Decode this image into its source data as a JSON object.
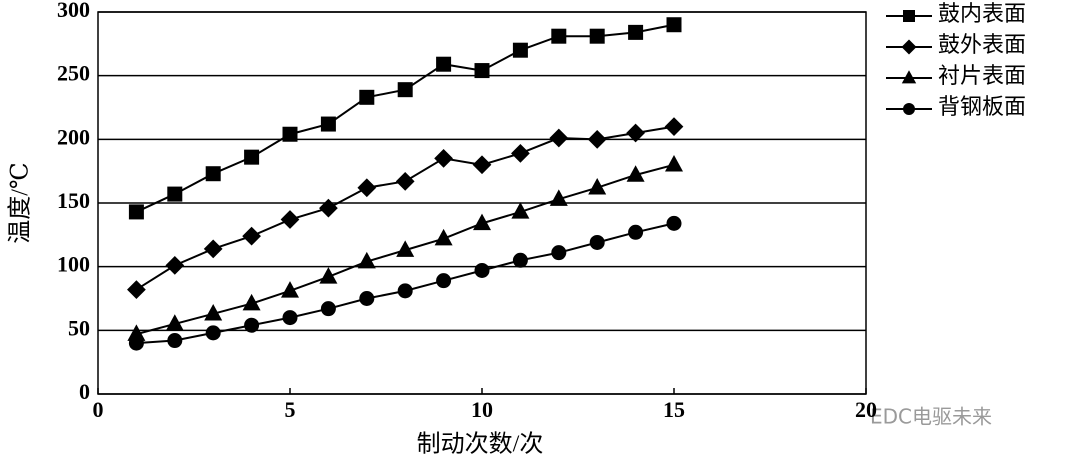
{
  "chart_data": {
    "type": "line",
    "x": [
      1,
      2,
      3,
      4,
      5,
      6,
      7,
      8,
      9,
      10,
      11,
      12,
      13,
      14,
      15
    ],
    "series": [
      {
        "name": "鼓内表面",
        "color": "#000000",
        "marker": "square",
        "values": [
          143,
          157,
          173,
          186,
          204,
          212,
          233,
          239,
          259,
          254,
          270,
          281,
          281,
          284,
          290
        ]
      },
      {
        "name": "鼓外表面",
        "color": "#000000",
        "marker": "diamond",
        "values": [
          82,
          101,
          114,
          124,
          137,
          146,
          162,
          167,
          185,
          180,
          189,
          201,
          200,
          205,
          210
        ]
      },
      {
        "name": "衬片表面",
        "color": "#000000",
        "marker": "triangle",
        "values": [
          47,
          55,
          63,
          71,
          81,
          92,
          104,
          113,
          122,
          134,
          143,
          153,
          162,
          172,
          180
        ]
      },
      {
        "name": "背钢板面",
        "color": "#000000",
        "marker": "circle",
        "values": [
          40,
          42,
          48,
          54,
          60,
          67,
          75,
          81,
          89,
          97,
          105,
          111,
          119,
          127,
          134
        ]
      }
    ],
    "xlim": [
      0,
      20
    ],
    "xticks": [
      0,
      5,
      10,
      15,
      20
    ],
    "ylim": [
      0,
      300
    ],
    "yticks": [
      0,
      50,
      100,
      150,
      200,
      250,
      300
    ],
    "grid": true,
    "legend": "right",
    "xlabel": "制动次数/次",
    "ylabel": "温度/℃",
    "watermark": "EDC电驱未来"
  }
}
